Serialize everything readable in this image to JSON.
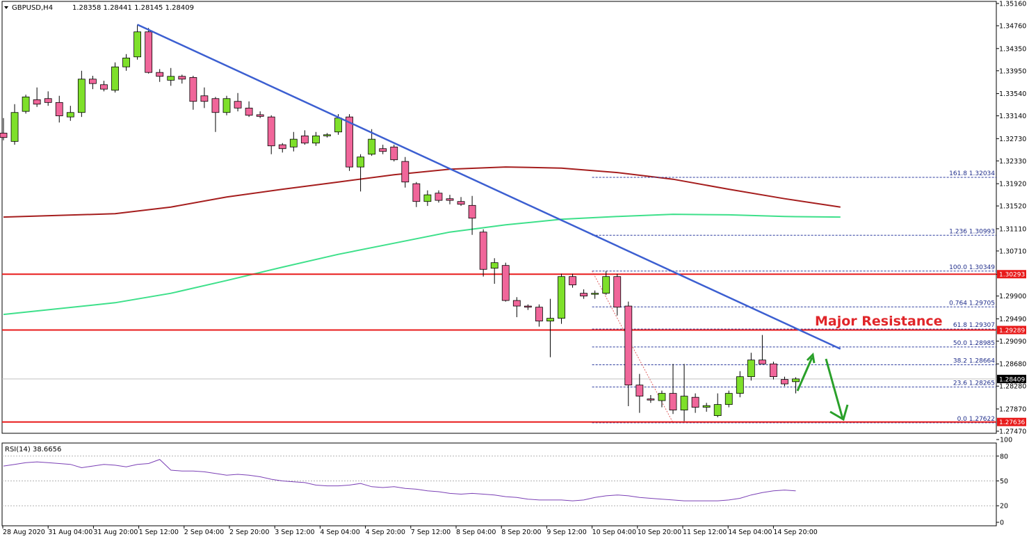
{
  "header": {
    "symbol": "GBPUSD,H4",
    "ohlc": "1.28358 1.28441 1.28145 1.28409"
  },
  "rsi_header": "RSI(14) 38.6656",
  "annotation": "Major Resistance",
  "colors": {
    "bull": "#7ee02a",
    "bear": "#f0669a",
    "trendline": "#3c5fd1",
    "ma_red": "#a51d1d",
    "ma_green": "#3de08a",
    "level": "#e81a1a",
    "fib": "#2b3a9e",
    "rsi": "#7a3fb5",
    "arrow": "#2aa02a"
  },
  "chart_data": {
    "type": "candlestick",
    "price_axis": {
      "range": [
        1.2747,
        1.3516
      ],
      "ticks": [
        "1.35160",
        "1.34760",
        "1.34350",
        "1.33950",
        "1.33540",
        "1.33140",
        "1.32730",
        "1.32330",
        "1.31920",
        "1.31520",
        "1.31110",
        "1.30710",
        "1.30290",
        "1.29900",
        "1.29490",
        "1.29090",
        "1.28680",
        "1.28280",
        "1.27870",
        "1.27470"
      ]
    },
    "time_axis": {
      "labels": [
        "28 Aug 2020",
        "31 Aug 04:00",
        "31 Aug 20:00",
        "1 Sep 12:00",
        "2 Sep 04:00",
        "2 Sep 20:00",
        "3 Sep 12:00",
        "4 Sep 04:00",
        "4 Sep 20:00",
        "7 Sep 12:00",
        "8 Sep 04:00",
        "8 Sep 20:00",
        "9 Sep 12:00",
        "10 Sep 04:00",
        "10 Sep 20:00",
        "11 Sep 12:00",
        "14 Sep 04:00",
        "14 Sep 20:00"
      ]
    },
    "candles": [
      {
        "o": 1.3283,
        "h": 1.331,
        "l": 1.327,
        "c": 1.3275
      },
      {
        "o": 1.3268,
        "h": 1.3335,
        "l": 1.3262,
        "c": 1.332
      },
      {
        "o": 1.3322,
        "h": 1.3352,
        "l": 1.3318,
        "c": 1.3348
      },
      {
        "o": 1.3343,
        "h": 1.3365,
        "l": 1.333,
        "c": 1.3335
      },
      {
        "o": 1.3345,
        "h": 1.3358,
        "l": 1.3332,
        "c": 1.3338
      },
      {
        "o": 1.3338,
        "h": 1.335,
        "l": 1.3302,
        "c": 1.3314
      },
      {
        "o": 1.3312,
        "h": 1.3332,
        "l": 1.3305,
        "c": 1.332
      },
      {
        "o": 1.332,
        "h": 1.3395,
        "l": 1.3312,
        "c": 1.338
      },
      {
        "o": 1.338,
        "h": 1.3386,
        "l": 1.3362,
        "c": 1.3372
      },
      {
        "o": 1.337,
        "h": 1.3377,
        "l": 1.3358,
        "c": 1.3362
      },
      {
        "o": 1.336,
        "h": 1.341,
        "l": 1.3356,
        "c": 1.3402
      },
      {
        "o": 1.3402,
        "h": 1.3425,
        "l": 1.3395,
        "c": 1.3418
      },
      {
        "o": 1.342,
        "h": 1.3478,
        "l": 1.3415,
        "c": 1.3465
      },
      {
        "o": 1.3465,
        "h": 1.3472,
        "l": 1.339,
        "c": 1.3392
      },
      {
        "o": 1.3392,
        "h": 1.3398,
        "l": 1.3375,
        "c": 1.3385
      },
      {
        "o": 1.3378,
        "h": 1.34,
        "l": 1.3368,
        "c": 1.3385
      },
      {
        "o": 1.3385,
        "h": 1.3388,
        "l": 1.3372,
        "c": 1.338
      },
      {
        "o": 1.3383,
        "h": 1.3386,
        "l": 1.3325,
        "c": 1.334
      },
      {
        "o": 1.335,
        "h": 1.3365,
        "l": 1.3328,
        "c": 1.334
      },
      {
        "o": 1.3345,
        "h": 1.3348,
        "l": 1.3285,
        "c": 1.332
      },
      {
        "o": 1.332,
        "h": 1.335,
        "l": 1.3315,
        "c": 1.3345
      },
      {
        "o": 1.334,
        "h": 1.3355,
        "l": 1.3322,
        "c": 1.3328
      },
      {
        "o": 1.3328,
        "h": 1.334,
        "l": 1.3312,
        "c": 1.3315
      },
      {
        "o": 1.3316,
        "h": 1.3322,
        "l": 1.331,
        "c": 1.3313
      },
      {
        "o": 1.3312,
        "h": 1.3315,
        "l": 1.3245,
        "c": 1.326
      },
      {
        "o": 1.3262,
        "h": 1.3265,
        "l": 1.3248,
        "c": 1.3255
      },
      {
        "o": 1.3258,
        "h": 1.3285,
        "l": 1.325,
        "c": 1.3272
      },
      {
        "o": 1.3278,
        "h": 1.3288,
        "l": 1.3262,
        "c": 1.3265
      },
      {
        "o": 1.3265,
        "h": 1.3285,
        "l": 1.326,
        "c": 1.3278
      },
      {
        "o": 1.3278,
        "h": 1.3283,
        "l": 1.3275,
        "c": 1.328
      },
      {
        "o": 1.3285,
        "h": 1.3317,
        "l": 1.328,
        "c": 1.331
      },
      {
        "o": 1.3312,
        "h": 1.3317,
        "l": 1.3215,
        "c": 1.3222
      },
      {
        "o": 1.3222,
        "h": 1.3245,
        "l": 1.3178,
        "c": 1.324
      },
      {
        "o": 1.3245,
        "h": 1.329,
        "l": 1.3242,
        "c": 1.3272
      },
      {
        "o": 1.3255,
        "h": 1.3262,
        "l": 1.3245,
        "c": 1.325
      },
      {
        "o": 1.3258,
        "h": 1.3262,
        "l": 1.3232,
        "c": 1.3235
      },
      {
        "o": 1.3232,
        "h": 1.324,
        "l": 1.3185,
        "c": 1.3195
      },
      {
        "o": 1.3192,
        "h": 1.3195,
        "l": 1.315,
        "c": 1.316
      },
      {
        "o": 1.316,
        "h": 1.318,
        "l": 1.3152,
        "c": 1.3172
      },
      {
        "o": 1.3175,
        "h": 1.318,
        "l": 1.3158,
        "c": 1.3162
      },
      {
        "o": 1.3165,
        "h": 1.3172,
        "l": 1.3155,
        "c": 1.3162
      },
      {
        "o": 1.316,
        "h": 1.3168,
        "l": 1.3152,
        "c": 1.3155
      },
      {
        "o": 1.3153,
        "h": 1.317,
        "l": 1.31,
        "c": 1.313
      },
      {
        "o": 1.3105,
        "h": 1.311,
        "l": 1.3025,
        "c": 1.3038
      },
      {
        "o": 1.304,
        "h": 1.3058,
        "l": 1.3012,
        "c": 1.305
      },
      {
        "o": 1.3045,
        "h": 1.305,
        "l": 1.298,
        "c": 1.2982
      },
      {
        "o": 1.2982,
        "h": 1.2988,
        "l": 1.2952,
        "c": 1.2972
      },
      {
        "o": 1.2972,
        "h": 1.2975,
        "l": 1.2965,
        "c": 1.297
      },
      {
        "o": 1.297,
        "h": 1.2975,
        "l": 1.2935,
        "c": 1.2945
      },
      {
        "o": 1.2945,
        "h": 1.2985,
        "l": 1.288,
        "c": 1.295
      },
      {
        "o": 1.295,
        "h": 1.303,
        "l": 1.294,
        "c": 1.3025
      },
      {
        "o": 1.3025,
        "h": 1.303,
        "l": 1.3005,
        "c": 1.301
      },
      {
        "o": 1.2995,
        "h": 1.3002,
        "l": 1.2985,
        "c": 1.299
      },
      {
        "o": 1.2995,
        "h": 1.3,
        "l": 1.2985,
        "c": 1.2995
      },
      {
        "o": 1.2995,
        "h": 1.3035,
        "l": 1.2992,
        "c": 1.3025
      },
      {
        "o": 1.3025,
        "h": 1.303,
        "l": 1.2955,
        "c": 1.297
      },
      {
        "o": 1.2972,
        "h": 1.298,
        "l": 1.2792,
        "c": 1.283
      },
      {
        "o": 1.283,
        "h": 1.285,
        "l": 1.278,
        "c": 1.281
      },
      {
        "o": 1.2805,
        "h": 1.2812,
        "l": 1.2798,
        "c": 1.2803
      },
      {
        "o": 1.2802,
        "h": 1.282,
        "l": 1.279,
        "c": 1.2815
      },
      {
        "o": 1.2815,
        "h": 1.2868,
        "l": 1.2778,
        "c": 1.2785
      },
      {
        "o": 1.2785,
        "h": 1.2868,
        "l": 1.2765,
        "c": 1.281
      },
      {
        "o": 1.2808,
        "h": 1.2815,
        "l": 1.278,
        "c": 1.279
      },
      {
        "o": 1.279,
        "h": 1.2798,
        "l": 1.2782,
        "c": 1.2793
      },
      {
        "o": 1.2775,
        "h": 1.2815,
        "l": 1.2772,
        "c": 1.2795
      },
      {
        "o": 1.2795,
        "h": 1.282,
        "l": 1.279,
        "c": 1.2815
      },
      {
        "o": 1.2815,
        "h": 1.2855,
        "l": 1.2808,
        "c": 1.2845
      },
      {
        "o": 1.2845,
        "h": 1.2888,
        "l": 1.2838,
        "c": 1.2875
      },
      {
        "o": 1.2875,
        "h": 1.292,
        "l": 1.2868,
        "c": 1.2868
      },
      {
        "o": 1.2868,
        "h": 1.2872,
        "l": 1.284,
        "c": 1.2845
      },
      {
        "o": 1.284,
        "h": 1.2845,
        "l": 1.2828,
        "c": 1.2832
      },
      {
        "o": 1.2836,
        "h": 1.2844,
        "l": 1.2815,
        "c": 1.2841
      }
    ],
    "moving_averages": [
      {
        "color": "ma_red",
        "points": [
          [
            0,
            1.3132
          ],
          [
            10,
            1.3138
          ],
          [
            15,
            1.315
          ],
          [
            20,
            1.3168
          ],
          [
            25,
            1.3182
          ],
          [
            30,
            1.3195
          ],
          [
            35,
            1.3208
          ],
          [
            40,
            1.3218
          ],
          [
            45,
            1.3222
          ],
          [
            50,
            1.322
          ],
          [
            55,
            1.3212
          ],
          [
            60,
            1.32
          ],
          [
            65,
            1.3182
          ],
          [
            70,
            1.3165
          ],
          [
            75,
            1.315
          ]
        ]
      },
      {
        "color": "ma_green",
        "points": [
          [
            0,
            1.2957
          ],
          [
            10,
            1.2978
          ],
          [
            15,
            1.2995
          ],
          [
            20,
            1.3018
          ],
          [
            25,
            1.3042
          ],
          [
            30,
            1.3065
          ],
          [
            35,
            1.3085
          ],
          [
            40,
            1.3105
          ],
          [
            45,
            1.3118
          ],
          [
            50,
            1.3128
          ],
          [
            55,
            1.3133
          ],
          [
            60,
            1.3137
          ],
          [
            65,
            1.3136
          ],
          [
            70,
            1.3133
          ],
          [
            75,
            1.3132
          ]
        ]
      }
    ],
    "trendline": {
      "from": [
        12,
        1.3478
      ],
      "to": [
        75,
        1.2895
      ]
    },
    "horizontal_levels": [
      {
        "price": 1.30293,
        "label": "1.30293"
      },
      {
        "price": 1.29289,
        "label": "1.29289"
      },
      {
        "price": 1.27636,
        "label": "1.27636"
      }
    ],
    "current_price": {
      "price": 1.28409,
      "label": "1.28409"
    },
    "fibonacci": {
      "start_index": 53,
      "levels": [
        {
          "ratio": "161.8",
          "price": 1.32034,
          "label": "161.8 1.32034"
        },
        {
          "ratio": "123.6",
          "price": 1.30993,
          "label": "1.236 1.30993"
        },
        {
          "ratio": "100.0",
          "price": 1.30349,
          "label": "100.0 1.30349"
        },
        {
          "ratio": "76.4",
          "price": 1.29705,
          "label": "0.764 1.29705"
        },
        {
          "ratio": "61.8",
          "price": 1.29307,
          "label": "61.8 1.29307"
        },
        {
          "ratio": "50.0",
          "price": 1.28985,
          "label": "50.0 1.28985"
        },
        {
          "ratio": "38.2",
          "price": 1.28664,
          "label": "38.2 1.28664"
        },
        {
          "ratio": "23.6",
          "price": 1.28265,
          "label": "23.6 1.28265"
        },
        {
          "ratio": "0.0",
          "price": 1.27622,
          "label": "0.0 1.27622"
        }
      ]
    },
    "rsi": {
      "period": 14,
      "current": 38.6656,
      "axis_ticks": [
        "100",
        "80",
        "50",
        "20",
        "0"
      ],
      "levels": [
        80,
        50,
        20
      ],
      "values": [
        68,
        70,
        72,
        73,
        72,
        71,
        70,
        66,
        68,
        70,
        69,
        67,
        70,
        71,
        76,
        63,
        62,
        62,
        61,
        59,
        57,
        58,
        57,
        55,
        52,
        50,
        49,
        48,
        45,
        44,
        44,
        45,
        47,
        43,
        42,
        43,
        41,
        40,
        38,
        37,
        35,
        34,
        35,
        34,
        33,
        31,
        30,
        28,
        27,
        27,
        27,
        26,
        27,
        30,
        32,
        33,
        32,
        30,
        29,
        28,
        27,
        26,
        26,
        26,
        26,
        27,
        29,
        33,
        36,
        38,
        39,
        38
      ]
    }
  }
}
